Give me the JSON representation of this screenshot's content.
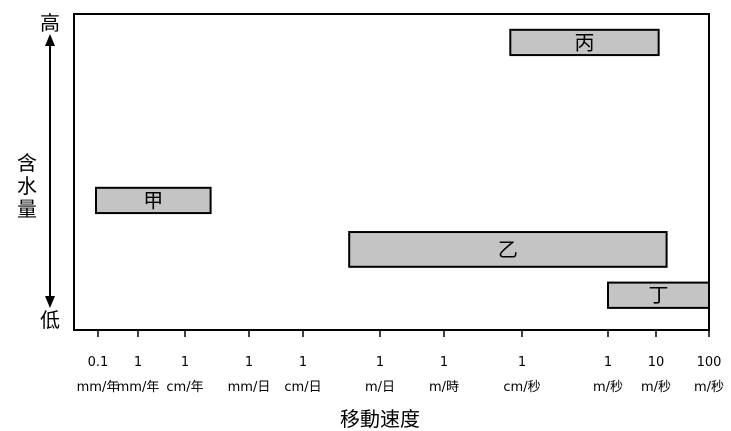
{
  "chart_data": {
    "type": "range-bar",
    "xlabel": "移動速度",
    "ylabel": "含水量",
    "y_axis": {
      "high_label": "高",
      "low_label": "低"
    },
    "x_ticks": [
      {
        "value": "0.1",
        "unit": "mm/年"
      },
      {
        "value": "1",
        "unit": "mm/年"
      },
      {
        "value": "1",
        "unit": "cm/年"
      },
      {
        "value": "1",
        "unit": "mm/日"
      },
      {
        "value": "1",
        "unit": "cm/日"
      },
      {
        "value": "1",
        "unit": "m/日"
      },
      {
        "value": "1",
        "unit": "m/時"
      },
      {
        "value": "1",
        "unit": "cm/秒"
      },
      {
        "value": "1",
        "unit": "m/秒"
      },
      {
        "value": "10",
        "unit": "m/秒"
      },
      {
        "value": "100",
        "unit": "m/秒"
      }
    ],
    "series": [
      {
        "name": "甲",
        "x_from": "0.1 mm/年",
        "x_to": "5 cm/年",
        "start_tick": -0.05,
        "end_tick": 2.4,
        "y_low": 0.37,
        "y_high": 0.45
      },
      {
        "name": "乙",
        "x_from": "0.3 m/日",
        "x_to": "20 m/秒",
        "start_tick": 4.6,
        "end_tick": 9.2,
        "y_low": 0.2,
        "y_high": 0.31
      },
      {
        "name": "丙",
        "x_from": "0.7 cm/秒",
        "x_to": "10 m/秒",
        "start_tick": 6.85,
        "end_tick": 9.05,
        "y_low": 0.87,
        "y_high": 0.95
      },
      {
        "name": "丁",
        "x_from": "1 m/秒",
        "x_to": "100 m/秒",
        "start_tick": 8.0,
        "end_tick": 10.0,
        "y_low": 0.07,
        "y_high": 0.15
      }
    ],
    "colors": {
      "bar_fill": "#c4c4c4",
      "bar_stroke": "#000000"
    }
  }
}
